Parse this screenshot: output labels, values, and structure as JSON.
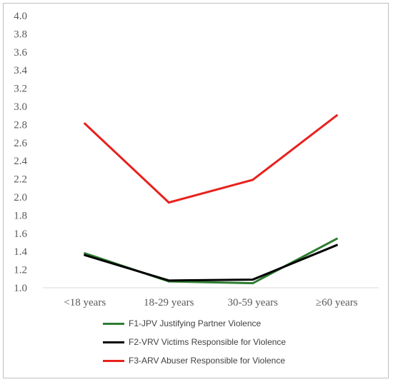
{
  "chart_data": {
    "type": "line",
    "title": "",
    "xlabel": "",
    "ylabel": "",
    "categories": [
      "<18 years",
      "18-29 years",
      "30-59 years",
      "≥60 years"
    ],
    "ylim": [
      1.0,
      4.0
    ],
    "yticks": [
      "1.0",
      "1.2",
      "1.4",
      "1.6",
      "1.8",
      "2.0",
      "2.2",
      "2.4",
      "2.6",
      "2.8",
      "3.0",
      "3.2",
      "3.4",
      "3.6",
      "3.8",
      "4.0"
    ],
    "grid": false,
    "legend_position": "bottom",
    "series": [
      {
        "name": "F1-JPV Justifying Partner Violence",
        "color": "#2e7d32",
        "values": [
          1.38,
          1.07,
          1.05,
          1.54
        ]
      },
      {
        "name": "F2-VRV Victims Responsible for Violence",
        "color": "#000000",
        "values": [
          1.36,
          1.08,
          1.09,
          1.47
        ]
      },
      {
        "name": "F3-ARV Abuser Responsible for Violence",
        "color": "#e8211d",
        "values": [
          2.81,
          1.94,
          2.19,
          2.9
        ]
      }
    ]
  }
}
